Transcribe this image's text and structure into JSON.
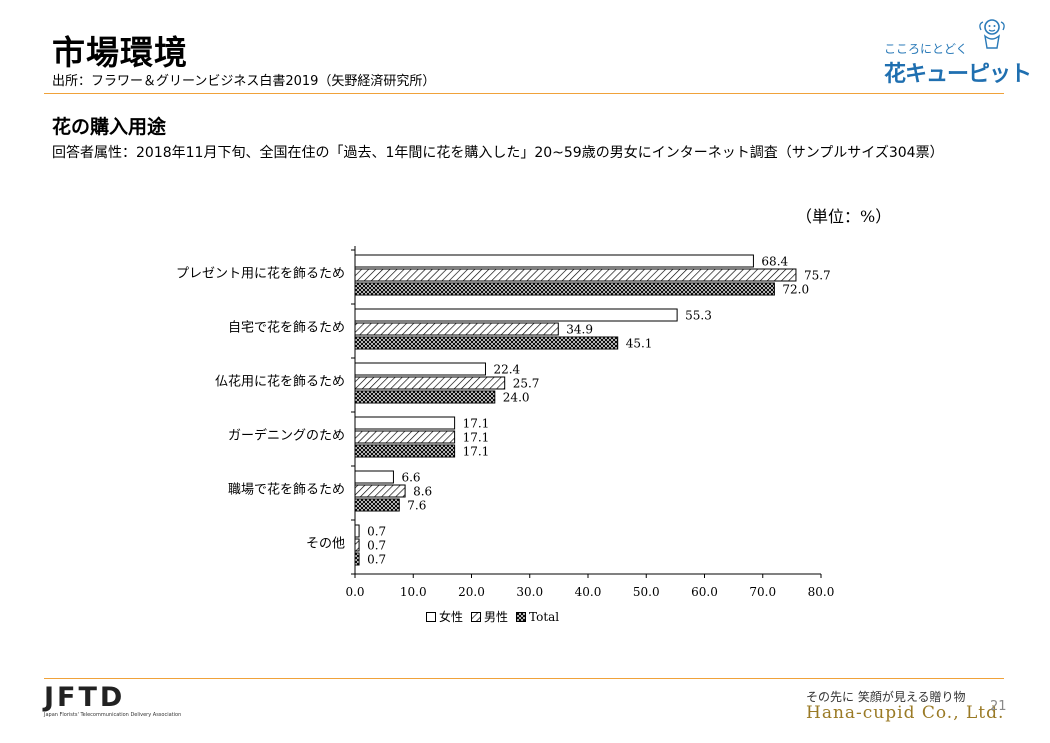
{
  "header": {
    "title": "市場環境",
    "source": "出所：フラワー＆グリーンビジネス白書2019（矢野経済研究所）"
  },
  "logo": {
    "tagline": "こころにとどく",
    "name": "花キューピット"
  },
  "section": {
    "title": "花の購入用途",
    "respondent": "回答者属性：2018年11月下旬、全国在住の「過去、1年間に花を購入した」20~59歳の男女にインターネット調査（サンプルサイズ304票）"
  },
  "chart_data": {
    "type": "bar",
    "orientation": "horizontal",
    "unit_label": "（単位：%）",
    "categories": [
      "プレゼント用に花を飾るため",
      "自宅で花を飾るため",
      "仏花用に花を飾るため",
      "ガーデニングのため",
      "職場で花を飾るため",
      "その他"
    ],
    "series": [
      {
        "name": "女性",
        "pattern": "white",
        "values": [
          68.4,
          55.3,
          22.4,
          17.1,
          6.6,
          0.7
        ],
        "labels": [
          "68.4",
          "55.3",
          "22.4",
          "17.1",
          "6.6",
          "0.7"
        ]
      },
      {
        "name": "男性",
        "pattern": "diagonal-hatch",
        "values": [
          75.7,
          34.9,
          25.7,
          17.1,
          8.6,
          0.7
        ],
        "labels": [
          "75.7",
          "34.9",
          "25.7",
          "17.1",
          "8.6",
          "0.7"
        ]
      },
      {
        "name": "Total",
        "pattern": "crosshatch",
        "values": [
          72.0,
          45.1,
          24.0,
          17.1,
          7.6,
          0.7
        ],
        "labels": [
          "72.0",
          "45.1",
          "24.0",
          "17.1",
          "7.6",
          "0.7"
        ]
      }
    ],
    "xlim": [
      0,
      80
    ],
    "xticks": [
      0,
      10,
      20,
      30,
      40,
      50,
      60,
      70,
      80
    ],
    "xtick_labels": [
      "0.0",
      "10.0",
      "20.0",
      "30.0",
      "40.0",
      "50.0",
      "60.0",
      "70.0",
      "80.0"
    ],
    "grid": false,
    "legend_position": "bottom"
  },
  "footer": {
    "org_name": "JFTD",
    "org_sub": "Japan Florists' Telecommunication Delivery Association",
    "tagline": "その先に 笑顔が見える贈り物",
    "company": "Hana-cupid Co., Ltd.",
    "page_number": "21"
  }
}
